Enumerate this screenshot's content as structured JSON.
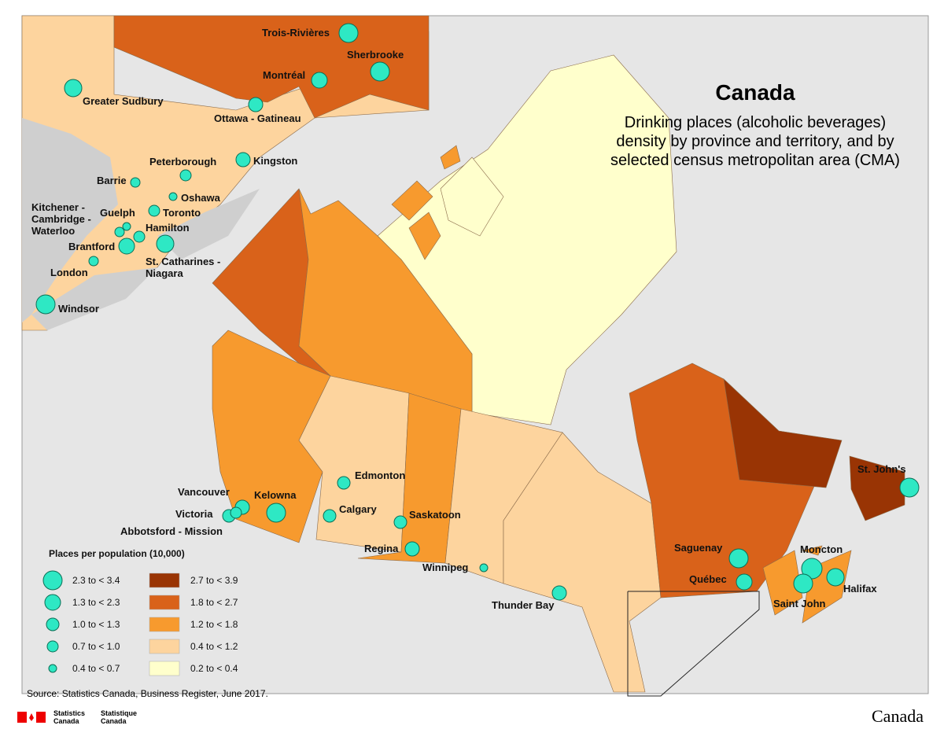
{
  "title": "Canada",
  "subtitle": [
    "Drinking places (alcoholic beverages)",
    "density by province and territory, and by",
    "selected census metropolitan area (CMA)"
  ],
  "cities": [
    "Trois-Rivières",
    "Sherbrooke",
    "Montréal",
    "Ottawa - Gatineau",
    "Greater Sudbury",
    "Kingston",
    "Peterborough",
    "Barrie",
    "Oshawa",
    "Toronto",
    "Guelph",
    "Kitchener - Cambridge - Waterloo",
    "Hamilton",
    "Brantford",
    "St. Catharines - Niagara",
    "London",
    "Windsor",
    "Edmonton",
    "Vancouver",
    "Kelowna",
    "Victoria",
    "Abbotsford - Mission",
    "Calgary",
    "Saskatoon",
    "Regina",
    "Winnipeg",
    "Thunder Bay",
    "Saguenay",
    "Québec",
    "Moncton",
    "Saint John",
    "Halifax",
    "St. John's"
  ],
  "legend": {
    "title": "Places per population (10,000)",
    "circles": [
      "2.3 to < 3.4",
      "1.3 to < 2.3",
      "1.0 to < 1.3",
      "0.7 to < 1.0",
      "0.4 to < 0.7"
    ],
    "fills": [
      "2.7 to < 3.9",
      "1.8 to < 2.7",
      "1.2 to < 1.8",
      "0.4 to < 1.2",
      "0.2 to < 0.4"
    ]
  },
  "source": "Source: Statistics Canada, Business Register, June 2017.",
  "footer": {
    "agency_en": "Statistics Canada",
    "agency_fr": "Statistique Canada",
    "wordmark": "Canada"
  }
}
